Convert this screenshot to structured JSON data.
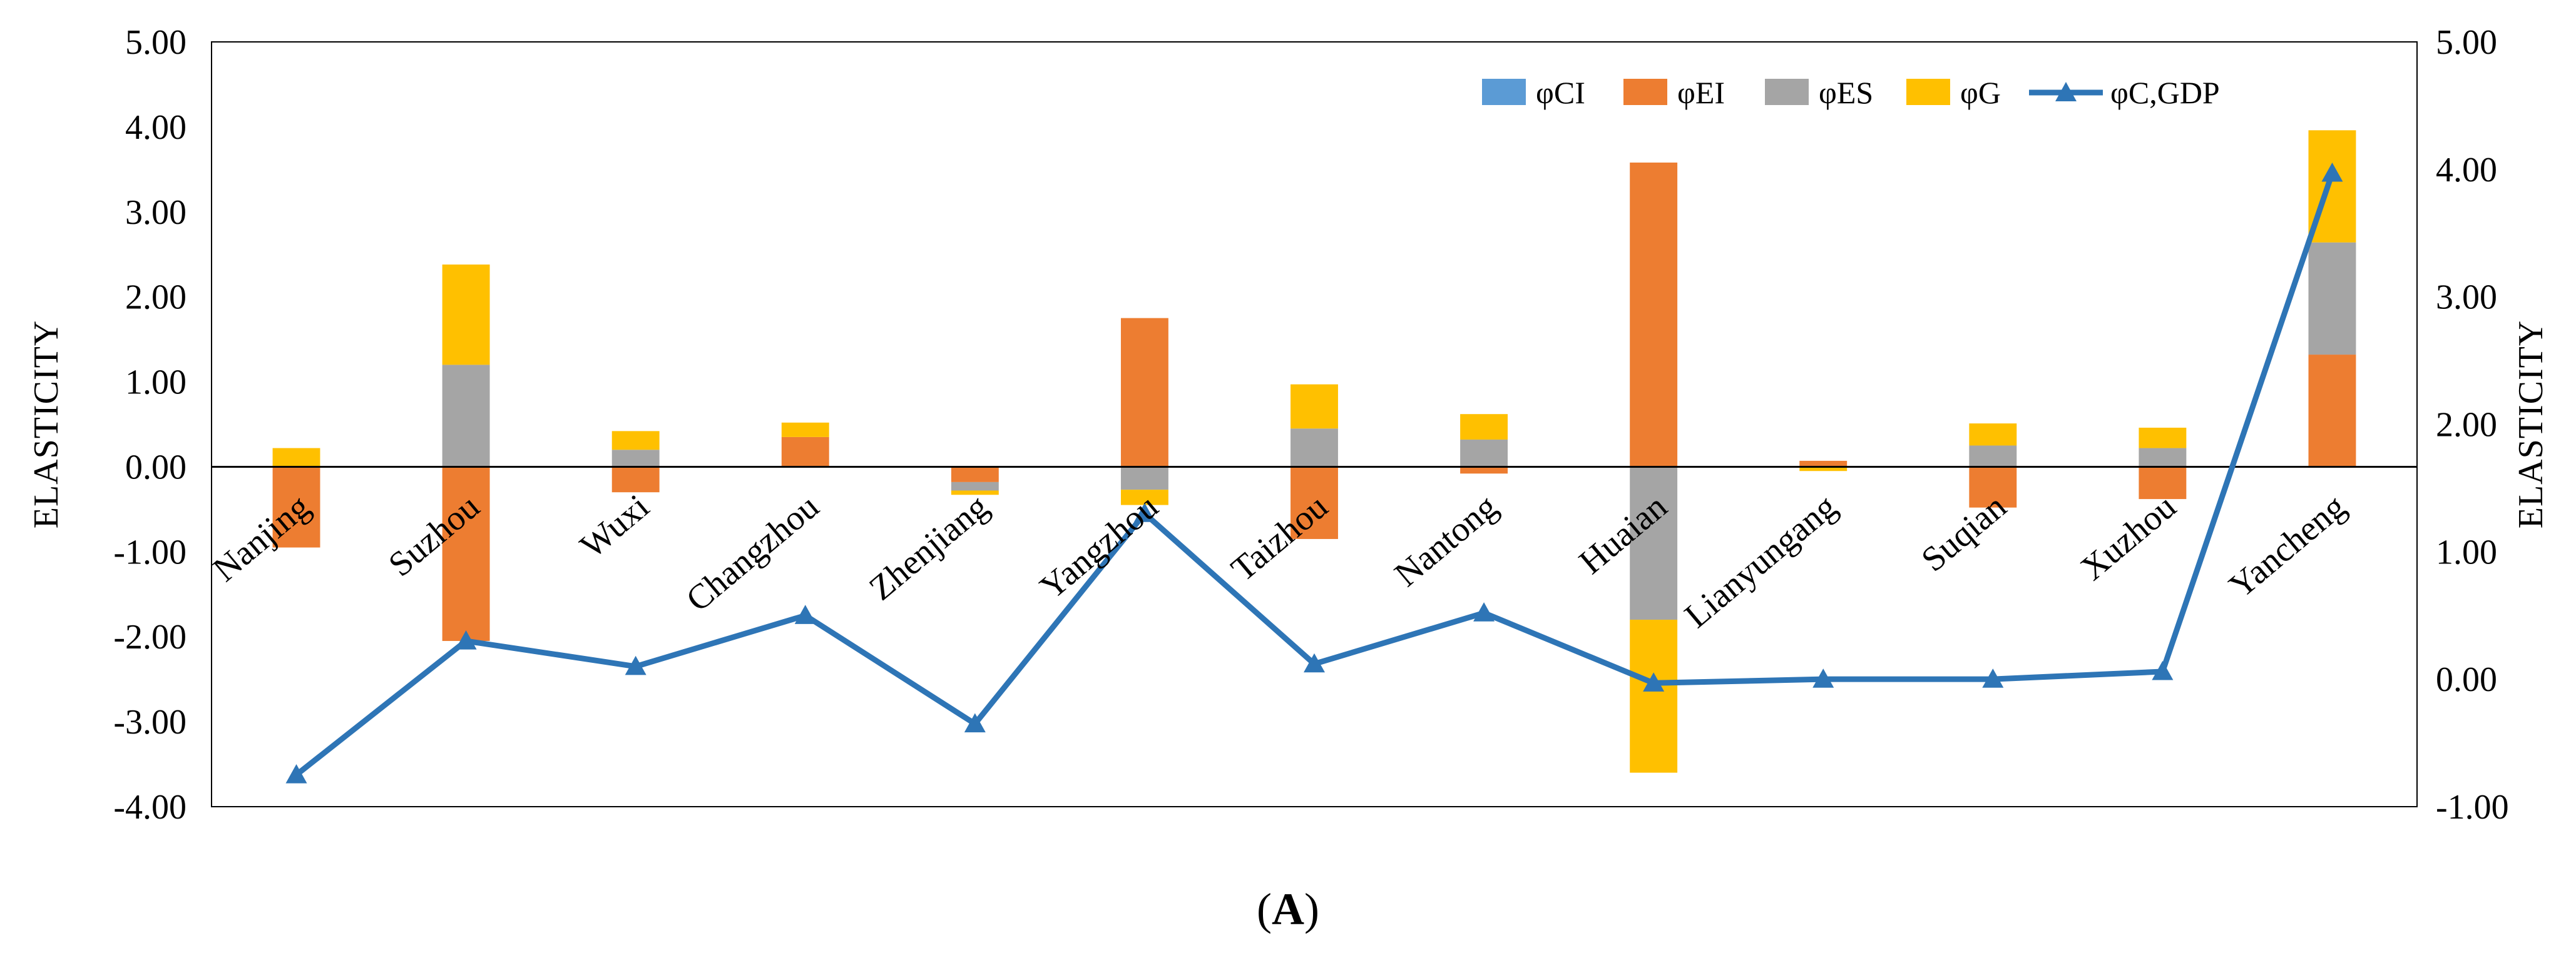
{
  "chart_data": {
    "type": "bar",
    "stacked": true,
    "categories": [
      "Nanjing",
      "Suzhou",
      "Wuxi",
      "Changzhou",
      "Zhenjiang",
      "Yangzhou",
      "Taizhou",
      "Nantong",
      "Huaian",
      "Lianyungang",
      "Suqian",
      "Xuzhou",
      "Yancheng"
    ],
    "series": [
      {
        "name": "φCI",
        "color": "#5B9BD5",
        "values": [
          0,
          0,
          0,
          0,
          0,
          0,
          0,
          0,
          0,
          0,
          0,
          0,
          0
        ]
      },
      {
        "name": "φEI",
        "color": "#ED7D31",
        "values": [
          -0.95,
          -2.05,
          -0.3,
          0.35,
          -0.18,
          1.75,
          -0.85,
          -0.08,
          3.58,
          0.07,
          -0.48,
          -0.38,
          1.32
        ]
      },
      {
        "name": "φES",
        "color": "#A5A5A5",
        "values": [
          0.0,
          1.2,
          0.2,
          0.0,
          -0.1,
          -0.27,
          0.45,
          0.32,
          -1.8,
          0.0,
          0.25,
          0.22,
          1.32
        ]
      },
      {
        "name": "φG",
        "color": "#FFC000",
        "values": [
          0.22,
          1.18,
          0.22,
          0.17,
          -0.05,
          -0.18,
          0.52,
          0.3,
          -1.8,
          -0.05,
          0.26,
          0.24,
          1.32
        ]
      }
    ],
    "line_series": {
      "name": "φC,GDP",
      "color": "#2E75B6",
      "axis": "right",
      "values": [
        -0.75,
        0.3,
        0.1,
        0.5,
        -0.35,
        1.3,
        0.12,
        0.52,
        -0.03,
        0.0,
        0.0,
        0.06,
        3.97
      ]
    },
    "title": "",
    "xlabel": "",
    "ylabel": "ELASTICITY",
    "ylabel_right": "ELASTICITY",
    "ylim": [
      -4.0,
      5.0
    ],
    "ylim_right": [
      -1.0,
      5.0
    ],
    "yticks": [
      "5.00",
      "4.00",
      "3.00",
      "2.00",
      "1.00",
      "0.00",
      "-1.00",
      "-2.00",
      "-3.00",
      "-4.00"
    ],
    "yticks_right": [
      "5.00",
      "4.00",
      "3.00",
      "2.00",
      "1.00",
      "0.00",
      "-1.00"
    ],
    "legend_position": "top-right",
    "caption": "(A)",
    "grid": false
  }
}
